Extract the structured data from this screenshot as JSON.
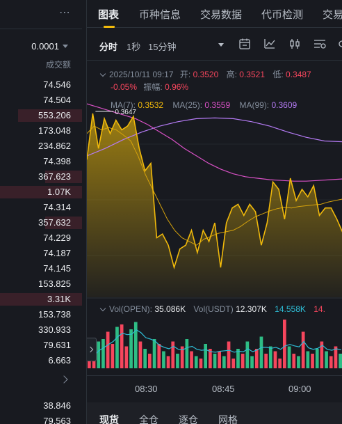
{
  "order_book": {
    "more_icon": "⋯",
    "precision": "0.0001",
    "column_header": "成交额",
    "rows": [
      {
        "amount": "74.546",
        "depth": 0.0
      },
      {
        "amount": "74.504",
        "depth": 0.0
      },
      {
        "amount": "553.206",
        "depth": 0.78
      },
      {
        "amount": "173.048",
        "depth": 0.0
      },
      {
        "amount": "234.862",
        "depth": 0.0
      },
      {
        "amount": "74.398",
        "depth": 0.0
      },
      {
        "amount": "367.623",
        "depth": 0.45
      },
      {
        "amount": "1.07K",
        "depth": 1.0
      },
      {
        "amount": "74.314",
        "depth": 0.0
      },
      {
        "amount": "357.632",
        "depth": 0.45
      },
      {
        "amount": "74.229",
        "depth": 0.0
      },
      {
        "amount": "74.187",
        "depth": 0.0
      },
      {
        "amount": "74.145",
        "depth": 0.0
      },
      {
        "amount": "153.825",
        "depth": 0.0
      },
      {
        "amount": "3.31K",
        "depth": 1.0
      },
      {
        "amount": "153.738",
        "depth": 0.0
      },
      {
        "amount": "330.933",
        "depth": 0.0
      },
      {
        "amount": "79.631",
        "depth": 0.0
      },
      {
        "amount": "6.663",
        "depth": 0.0
      }
    ],
    "rows2": [
      {
        "amount": "38.846"
      },
      {
        "amount": "79.563"
      }
    ]
  },
  "tabs": [
    "图表",
    "币种信息",
    "交易数据",
    "代币检测",
    "交易"
  ],
  "toolbar": {
    "timeframes": [
      "分时",
      "1秒",
      "15分钟"
    ],
    "tools": [
      "calendar-icon",
      "indicator-icon",
      "candle-style-icon",
      "layout-icon",
      "settings-icon"
    ]
  },
  "ohlc": {
    "date": "2025/10/11 09:17",
    "open_label": "开:",
    "open": "0.3520",
    "high_label": "高:",
    "high": "0.3521",
    "low_label": "低:",
    "low": "0.3487",
    "change": "-0.05%",
    "amp_label": "振幅:",
    "amp": "0.96%"
  },
  "ma": {
    "ma7_label": "MA(7):",
    "ma7": "0.3532",
    "ma25_label": "MA(25):",
    "ma25": "0.3559",
    "ma99_label": "MA(99):",
    "ma99": "0.3609"
  },
  "volume_legend": {
    "vol_label": "Vol(OPEN):",
    "vol": "35.086K",
    "usdt_label": "Vol(USDT)",
    "usdt": "12.307K",
    "ma1": "14.558K",
    "ma2": "14."
  },
  "bottom_tabs": [
    "现货",
    "全仓",
    "逐仓",
    "网格"
  ],
  "colors": {
    "accent": "#f0b90b",
    "up": "#2ebd85",
    "down": "#f6465d",
    "ma25": "#d951c6",
    "ma99": "#b57bf5"
  },
  "chart_data": {
    "type": "area",
    "x_ticks": [
      "08:30",
      "08:45",
      "09:00"
    ],
    "price_high_marker": "0.3647",
    "price": [
      0.3585,
      0.3647,
      0.36,
      0.364,
      0.362,
      0.3638,
      0.3625,
      0.363,
      0.3643,
      0.36,
      0.357,
      0.358,
      0.348,
      0.3485,
      0.347,
      0.344,
      0.3465,
      0.347,
      0.349,
      0.346,
      0.349,
      0.3475,
      0.35,
      0.344,
      0.35,
      0.352,
      0.3525,
      0.351,
      0.3525,
      0.3515,
      0.347,
      0.35,
      0.3555,
      0.3545,
      0.3505,
      0.356,
      0.353,
      0.3545,
      0.3535,
      0.355,
      0.351,
      0.352,
      0.352,
      0.3505,
      0.3487
    ],
    "ma7": [
      0.362,
      0.363,
      0.3625,
      0.3628,
      0.3625,
      0.3618,
      0.361,
      0.359,
      0.3565,
      0.3545,
      0.3525,
      0.3505,
      0.349,
      0.348,
      0.3475,
      0.347,
      0.3478,
      0.3482,
      0.3486,
      0.3488,
      0.349,
      0.3495,
      0.3502,
      0.3508,
      0.3512,
      0.3516,
      0.3519,
      0.3521,
      0.352,
      0.3522,
      0.3523,
      0.3524,
      0.3525,
      0.3528,
      0.353,
      0.3532
    ],
    "ma25": [
      0.366,
      0.3655,
      0.365,
      0.3645,
      0.364,
      0.3632,
      0.3622,
      0.3612,
      0.36,
      0.359,
      0.358,
      0.3572,
      0.3566,
      0.3562,
      0.356,
      0.3558,
      0.3557,
      0.3556,
      0.3556,
      0.3557,
      0.3558,
      0.3559
    ],
    "ma99": [
      0.359,
      0.36,
      0.3612,
      0.3622,
      0.363,
      0.3636,
      0.364,
      0.3641,
      0.364,
      0.3636,
      0.363,
      0.3622,
      0.3615,
      0.361,
      0.3609
    ],
    "volume": [
      {
        "v": 0.2,
        "up": false
      },
      {
        "v": 0.35,
        "up": false
      },
      {
        "v": 0.55,
        "up": true
      },
      {
        "v": 0.6,
        "up": true
      },
      {
        "v": 0.75,
        "up": false
      },
      {
        "v": 0.5,
        "up": false
      },
      {
        "v": 0.85,
        "up": true
      },
      {
        "v": 0.9,
        "up": false
      },
      {
        "v": 0.45,
        "up": false
      },
      {
        "v": 0.8,
        "up": true
      },
      {
        "v": 0.95,
        "up": true
      },
      {
        "v": 0.55,
        "up": false
      },
      {
        "v": 0.4,
        "up": true
      },
      {
        "v": 0.3,
        "up": false
      },
      {
        "v": 0.6,
        "up": true
      },
      {
        "v": 0.5,
        "up": false
      },
      {
        "v": 0.35,
        "up": true
      },
      {
        "v": 0.25,
        "up": false
      },
      {
        "v": 0.55,
        "up": false
      },
      {
        "v": 0.3,
        "up": true
      },
      {
        "v": 0.45,
        "up": false
      },
      {
        "v": 0.6,
        "up": true
      },
      {
        "v": 0.35,
        "up": false
      },
      {
        "v": 0.25,
        "up": true
      },
      {
        "v": 0.2,
        "up": false
      },
      {
        "v": 0.5,
        "up": true
      },
      {
        "v": 0.4,
        "up": false
      },
      {
        "v": 0.3,
        "up": true
      },
      {
        "v": 0.35,
        "up": false
      },
      {
        "v": 0.25,
        "up": true
      },
      {
        "v": 0.55,
        "up": false
      },
      {
        "v": 0.2,
        "up": false
      },
      {
        "v": 0.4,
        "up": true
      },
      {
        "v": 0.3,
        "up": false
      },
      {
        "v": 0.55,
        "up": true
      },
      {
        "v": 0.25,
        "up": true
      },
      {
        "v": 0.4,
        "up": false
      },
      {
        "v": 0.65,
        "up": true
      },
      {
        "v": 0.3,
        "up": false
      },
      {
        "v": 0.45,
        "up": true
      },
      {
        "v": 0.35,
        "up": false
      },
      {
        "v": 0.2,
        "up": false
      },
      {
        "v": 1.0,
        "up": false
      },
      {
        "v": 0.45,
        "up": true
      },
      {
        "v": 0.3,
        "up": false
      },
      {
        "v": 0.25,
        "up": true
      },
      {
        "v": 0.75,
        "up": false
      },
      {
        "v": 0.35,
        "up": true
      },
      {
        "v": 0.3,
        "up": false
      },
      {
        "v": 0.4,
        "up": true
      },
      {
        "v": 0.55,
        "up": false
      },
      {
        "v": 0.35,
        "up": true
      },
      {
        "v": 0.25,
        "up": false
      },
      {
        "v": 0.45,
        "up": false
      },
      {
        "v": 0.3,
        "up": true
      }
    ]
  }
}
